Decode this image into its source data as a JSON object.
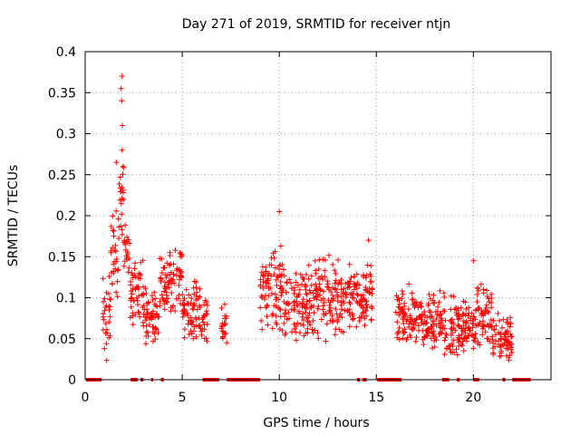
{
  "chart_data": {
    "type": "scatter",
    "title": "Day 271 of 2019, SRMTID for receiver ntjn",
    "xlabel": "GPS time / hours",
    "ylabel": "SRMTID / TECUs",
    "xlim": [
      0,
      24
    ],
    "ylim": [
      0,
      0.4
    ],
    "xticks": [
      0,
      5,
      10,
      15,
      20
    ],
    "xtick_labels": [
      "0",
      "5",
      "10",
      "15",
      "20"
    ],
    "yticks": [
      0,
      0.05,
      0.1,
      0.15,
      0.2,
      0.25,
      0.3,
      0.35,
      0.4
    ],
    "ytick_labels": [
      "0",
      "0.05",
      "0.1",
      "0.15",
      "0.2",
      "0.25",
      "0.3",
      "0.35",
      "0.4"
    ],
    "grid": true,
    "marker": "plus",
    "color": "#ff0000",
    "segments": [
      {
        "x_start": 0.9,
        "x_end": 1.3,
        "y_center": 0.08,
        "y_spread": 0.04
      },
      {
        "x_start": 1.3,
        "x_end": 1.7,
        "y_center": 0.15,
        "y_spread": 0.05
      },
      {
        "x_start": 1.7,
        "x_end": 2.0,
        "y_center": 0.22,
        "y_spread": 0.05
      },
      {
        "x_start": 2.0,
        "x_end": 2.3,
        "y_center": 0.16,
        "y_spread": 0.03
      },
      {
        "x_start": 2.3,
        "x_end": 3.0,
        "y_center": 0.11,
        "y_spread": 0.03
      },
      {
        "x_start": 3.0,
        "x_end": 3.8,
        "y_center": 0.08,
        "y_spread": 0.025
      },
      {
        "x_start": 3.8,
        "x_end": 5.0,
        "y_center": 0.12,
        "y_spread": 0.03
      },
      {
        "x_start": 5.0,
        "x_end": 6.0,
        "y_center": 0.085,
        "y_spread": 0.025
      },
      {
        "x_start": 6.0,
        "x_end": 6.0,
        "y_center": 0.07,
        "y_spread": 0.025
      },
      {
        "x_start": 7.0,
        "x_end": 7.3,
        "y_center": 0.07,
        "y_spread": 0.02
      },
      {
        "x_start": 9.0,
        "x_end": 10.2,
        "y_center": 0.11,
        "y_spread": 0.035
      },
      {
        "x_start": 10.2,
        "x_end": 11.5,
        "y_center": 0.09,
        "y_spread": 0.03
      },
      {
        "x_start": 11.5,
        "x_end": 13.2,
        "y_center": 0.1,
        "y_spread": 0.035
      },
      {
        "x_start": 13.2,
        "x_end": 14.8,
        "y_center": 0.1,
        "y_spread": 0.03
      },
      {
        "x_start": 16.0,
        "x_end": 16.8,
        "y_center": 0.08,
        "y_spread": 0.025
      },
      {
        "x_start": 16.8,
        "x_end": 18.5,
        "y_center": 0.07,
        "y_spread": 0.025
      },
      {
        "x_start": 18.5,
        "x_end": 20.2,
        "y_center": 0.065,
        "y_spread": 0.025
      },
      {
        "x_start": 20.2,
        "x_end": 21.0,
        "y_center": 0.08,
        "y_spread": 0.025
      },
      {
        "x_start": 21.0,
        "x_end": 22.0,
        "y_center": 0.05,
        "y_spread": 0.02
      }
    ],
    "peaks": [
      {
        "x": 1.9,
        "y": 0.37
      },
      {
        "x": 1.85,
        "y": 0.355
      },
      {
        "x": 1.88,
        "y": 0.34
      },
      {
        "x": 1.92,
        "y": 0.31
      },
      {
        "x": 1.9,
        "y": 0.28
      },
      {
        "x": 1.6,
        "y": 0.265
      },
      {
        "x": 1.95,
        "y": 0.26
      },
      {
        "x": 10.0,
        "y": 0.205
      },
      {
        "x": 14.6,
        "y": 0.17
      },
      {
        "x": 20.0,
        "y": 0.145
      }
    ],
    "zero_bars": [
      [
        0.05,
        0.85
      ],
      [
        2.35,
        2.7
      ],
      [
        2.85,
        3.0
      ],
      [
        3.4,
        3.5
      ],
      [
        3.9,
        4.05
      ],
      [
        6.05,
        6.9
      ],
      [
        7.3,
        9.0
      ],
      [
        14.0,
        14.15
      ],
      [
        14.3,
        14.5
      ],
      [
        15.05,
        16.3
      ],
      [
        18.4,
        18.75
      ],
      [
        19.15,
        19.3
      ],
      [
        20.0,
        20.3
      ],
      [
        21.5,
        21.65
      ],
      [
        22.0,
        22.95
      ]
    ]
  }
}
